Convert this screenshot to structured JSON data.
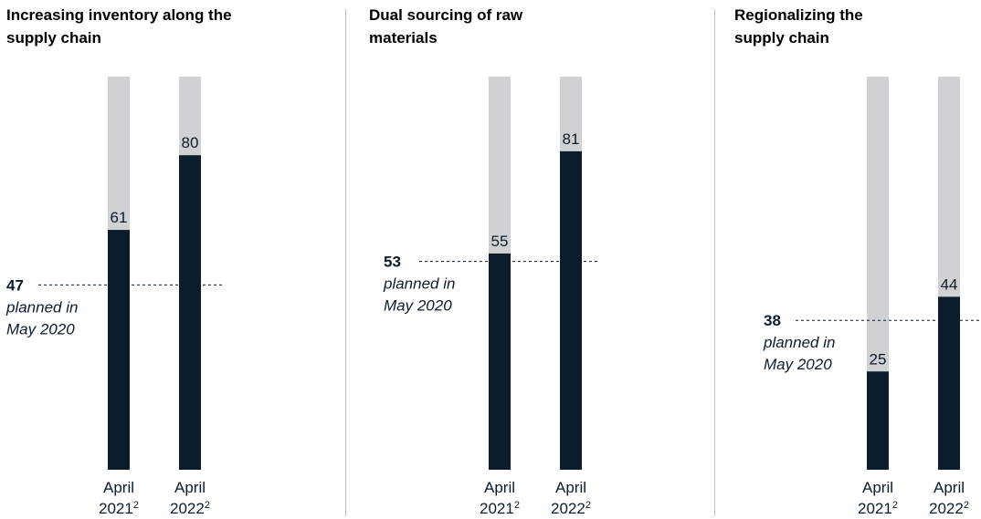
{
  "colors": {
    "bar_fill": "#0b1c2c",
    "bar_track": "#cfd1d3",
    "text": "#0b1c2c",
    "divider": "#bdbfc1"
  },
  "chart_data": [
    {
      "type": "bar",
      "title": "Increasing inventory along the supply chain",
      "categories": [
        {
          "label": "April",
          "year": "2021",
          "sup": "2"
        },
        {
          "label": "April",
          "year": "2022",
          "sup": "2"
        }
      ],
      "values": [
        61,
        80
      ],
      "ylim": [
        0,
        100
      ],
      "reference": {
        "value": 47,
        "label": "47",
        "note": [
          "planned in",
          "May 2020"
        ]
      },
      "grid": false,
      "legend": "none"
    },
    {
      "type": "bar",
      "title": "Dual sourcing of raw materials",
      "categories": [
        {
          "label": "April",
          "year": "2021",
          "sup": "2"
        },
        {
          "label": "April",
          "year": "2022",
          "sup": "2"
        }
      ],
      "values": [
        55,
        81
      ],
      "ylim": [
        0,
        100
      ],
      "reference": {
        "value": 53,
        "label": "53",
        "note": [
          "planned in",
          "May 2020"
        ]
      },
      "grid": false,
      "legend": "none"
    },
    {
      "type": "bar",
      "title": "Regionalizing the supply chain",
      "categories": [
        {
          "label": "April",
          "year": "2021",
          "sup": "2"
        },
        {
          "label": "April",
          "year": "2022",
          "sup": "2"
        }
      ],
      "values": [
        25,
        44
      ],
      "ylim": [
        0,
        100
      ],
      "reference": {
        "value": 38,
        "label": "38",
        "note": [
          "planned in",
          "May 2020"
        ]
      },
      "grid": false,
      "legend": "none"
    }
  ]
}
